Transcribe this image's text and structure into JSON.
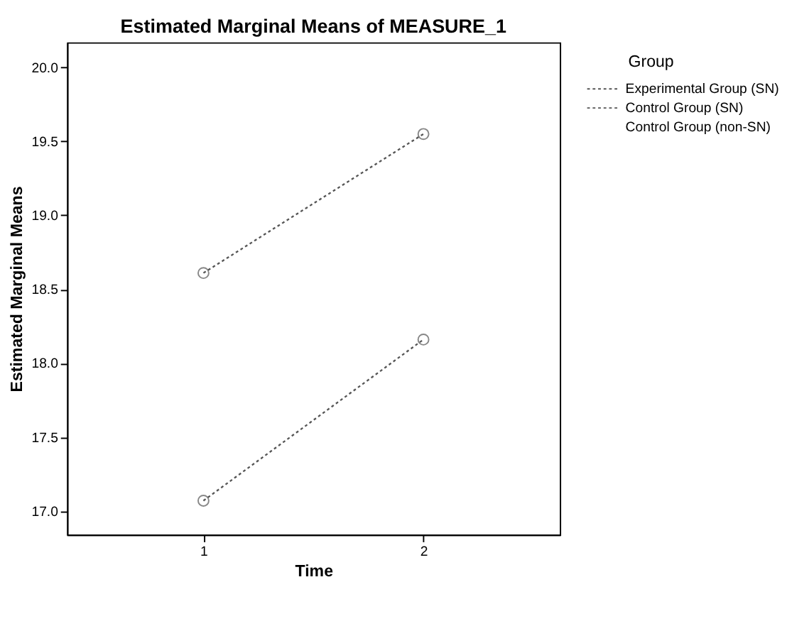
{
  "chart_data": {
    "type": "line",
    "title": "Estimated Marginal Means of MEASURE_1",
    "xlabel": "Time",
    "ylabel": "Estimated Marginal Means",
    "legend_title": "Group",
    "x": [
      1,
      2
    ],
    "xlim": [
      0.38,
      2.62
    ],
    "xticks": [
      1,
      2
    ],
    "ylim": [
      16.84,
      20.17
    ],
    "yticks": [
      {
        "value": 17.0,
        "label": "17.0"
      },
      {
        "value": 17.5,
        "label": "17.5"
      },
      {
        "value": 18.0,
        "label": "18.0"
      },
      {
        "value": 18.5,
        "label": "18.5"
      },
      {
        "value": 19.0,
        "label": "19.0"
      },
      {
        "value": 19.5,
        "label": "19.5"
      },
      {
        "value": 20.0,
        "label": "20.0"
      }
    ],
    "series": [
      {
        "name": "Experimental Group (SN)",
        "color": "#555555",
        "values": [
          18.61,
          19.55
        ]
      },
      {
        "name": "Control Group (SN)",
        "color": "#555555",
        "values": [
          17.07,
          18.16
        ]
      },
      {
        "name": "Control Group (non-SN)",
        "values": [
          null,
          null
        ]
      }
    ],
    "marker": "circle",
    "line_style": "dotted",
    "grid": false,
    "legend": "right"
  }
}
